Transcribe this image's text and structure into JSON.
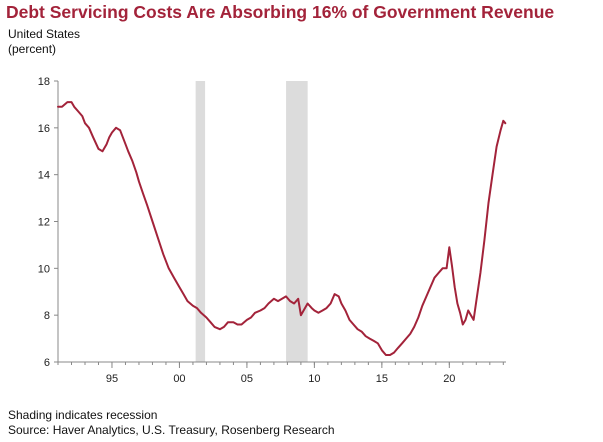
{
  "title": "Debt Servicing Costs Are Absorbing 16% of Government Revenue",
  "subtitle_country": "United States",
  "subtitle_unit": "(percent)",
  "footnote_shading": "Shading indicates recession",
  "footnote_source": "Source: Haver Analytics, U.S. Treasury, Rosenberg Research",
  "colors": {
    "title": "#a3233a",
    "line": "#a3233a",
    "recession": "#dcdcdc",
    "axis": "#888888"
  },
  "chart_data": {
    "type": "line",
    "title": "Debt Servicing Costs Are Absorbing 16% of Government Revenue",
    "xlabel": "",
    "ylabel": "(percent)",
    "xlim": [
      1991.0,
      2024.2
    ],
    "ylim": [
      6,
      18
    ],
    "yticks": [
      6,
      8,
      10,
      12,
      14,
      16,
      18
    ],
    "xticks": [
      {
        "value": 1995,
        "label": "95"
      },
      {
        "value": 2000,
        "label": "00"
      },
      {
        "value": 2005,
        "label": "05"
      },
      {
        "value": 2010,
        "label": "10"
      },
      {
        "value": 2015,
        "label": "15"
      },
      {
        "value": 2020,
        "label": "20"
      }
    ],
    "recessions": [
      [
        2001.2,
        2001.9
      ],
      [
        2007.9,
        2009.5
      ]
    ],
    "grid": false,
    "legend": "none",
    "series": [
      {
        "x": [
          1991.0,
          1991.3,
          1991.7,
          1992.0,
          1992.2,
          1992.5,
          1992.8,
          1993.0,
          1993.3,
          1993.6,
          1994.0,
          1994.3,
          1994.6,
          1994.8,
          1995.0,
          1995.3,
          1995.6,
          1995.8,
          1996.0,
          1996.2,
          1996.5,
          1996.8,
          1997.0,
          1997.3,
          1997.6,
          1998.0,
          1998.4,
          1998.8,
          1999.2,
          1999.6,
          2000.0,
          2000.3,
          2000.6,
          2001.0,
          2001.3,
          2001.6,
          2002.0,
          2002.3,
          2002.6,
          2003.0,
          2003.3,
          2003.6,
          2004.0,
          2004.3,
          2004.6,
          2005.0,
          2005.3,
          2005.6,
          2006.0,
          2006.3,
          2006.6,
          2007.0,
          2007.3,
          2007.6,
          2007.9,
          2008.2,
          2008.5,
          2008.8,
          2009.0,
          2009.2,
          2009.5,
          2009.8,
          2010.0,
          2010.3,
          2010.6,
          2010.9,
          2011.2,
          2011.5,
          2011.8,
          2012.0,
          2012.3,
          2012.6,
          2012.9,
          2013.2,
          2013.5,
          2013.8,
          2014.1,
          2014.4,
          2014.7,
          2015.0,
          2015.3,
          2015.6,
          2015.9,
          2016.2,
          2016.5,
          2016.8,
          2017.1,
          2017.4,
          2017.7,
          2018.0,
          2018.3,
          2018.6,
          2018.9,
          2019.2,
          2019.5,
          2019.8,
          2020.0,
          2020.2,
          2020.4,
          2020.6,
          2020.8,
          2021.0,
          2021.2,
          2021.4,
          2021.6,
          2021.8,
          2022.0,
          2022.3,
          2022.6,
          2022.9,
          2023.2,
          2023.5,
          2023.8,
          2024.0,
          2024.15
        ],
        "y": [
          16.9,
          16.9,
          17.1,
          17.1,
          16.9,
          16.7,
          16.5,
          16.2,
          16.0,
          15.6,
          15.1,
          15.0,
          15.3,
          15.6,
          15.8,
          16.0,
          15.9,
          15.6,
          15.3,
          15.0,
          14.6,
          14.1,
          13.7,
          13.2,
          12.7,
          12.0,
          11.3,
          10.6,
          10.0,
          9.6,
          9.2,
          8.9,
          8.6,
          8.4,
          8.3,
          8.1,
          7.9,
          7.7,
          7.5,
          7.4,
          7.5,
          7.7,
          7.7,
          7.6,
          7.6,
          7.8,
          7.9,
          8.1,
          8.2,
          8.3,
          8.5,
          8.7,
          8.6,
          8.7,
          8.8,
          8.6,
          8.5,
          8.7,
          8.0,
          8.2,
          8.5,
          8.3,
          8.2,
          8.1,
          8.2,
          8.3,
          8.5,
          8.9,
          8.8,
          8.5,
          8.2,
          7.8,
          7.6,
          7.4,
          7.3,
          7.1,
          7.0,
          6.9,
          6.8,
          6.5,
          6.3,
          6.3,
          6.4,
          6.6,
          6.8,
          7.0,
          7.2,
          7.5,
          7.9,
          8.4,
          8.8,
          9.2,
          9.6,
          9.8,
          10.0,
          10.0,
          10.9,
          10.1,
          9.2,
          8.5,
          8.1,
          7.6,
          7.8,
          8.2,
          8.0,
          7.8,
          8.6,
          9.8,
          11.2,
          12.8,
          14.0,
          15.2,
          15.9,
          16.3,
          16.2
        ]
      }
    ]
  }
}
